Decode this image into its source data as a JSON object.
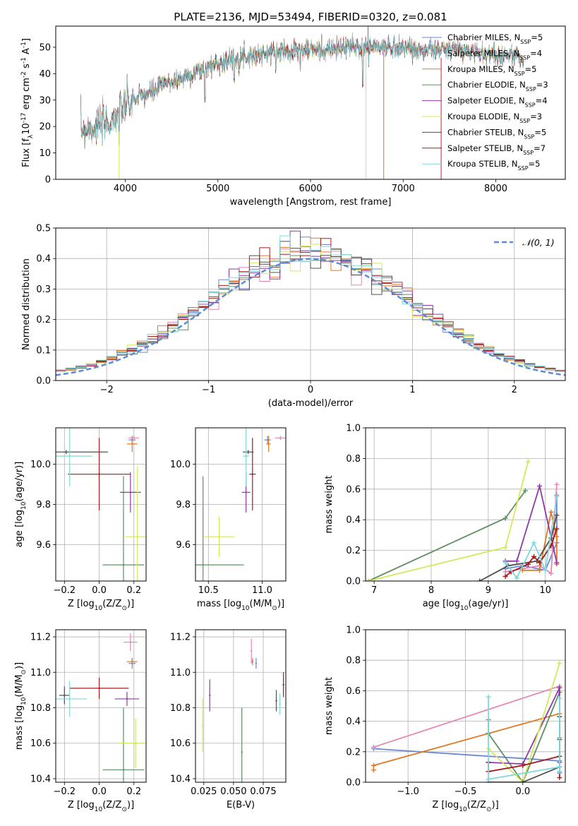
{
  "figure": {
    "title": "PLATE=2136, MJD=53494, FIBERID=0320, z=0.081",
    "models": [
      {
        "name": "Chabrier MILES, N$_{SSP}$=5",
        "label": "Chabrier MILES, N",
        "sub": "SSP",
        "n": "=5",
        "color": "#6a89d4"
      },
      {
        "name": "Salpeter MILES, N$_{SSP}$=4",
        "label": "Salpeter MILES, N",
        "sub": "SSP",
        "n": "=4",
        "color": "#e487b8"
      },
      {
        "name": "Kroupa MILES, N$_{SSP}$=5",
        "label": "Kroupa MILES, N",
        "sub": "SSP",
        "n": "=5",
        "color": "#e07a23"
      },
      {
        "name": "Chabrier ELODIE, N$_{SSP}$=3",
        "label": "Chabrier ELODIE, N",
        "sub": "SSP",
        "n": "=3",
        "color": "#5f8f62"
      },
      {
        "name": "Salpeter ELODIE, N$_{SSP}$=4",
        "label": "Salpeter ELODIE, N",
        "sub": "SSP",
        "n": "=4",
        "color": "#8e3aa8"
      },
      {
        "name": "Kroupa ELODIE, N$_{SSP}$=3",
        "label": "Kroupa ELODIE, N",
        "sub": "SSP",
        "n": "=3",
        "color": "#d6e85a"
      },
      {
        "name": "Chabrier STELIB, N$_{SSP}$=5",
        "label": "Chabrier STELIB, N",
        "sub": "SSP",
        "n": "=5",
        "color": "#4f4f4f"
      },
      {
        "name": "Salpeter STELIB, N$_{SSP}$=7",
        "label": "Salpeter STELIB, N",
        "sub": "SSP",
        "n": "=7",
        "color": "#a31b1b"
      },
      {
        "name": "Kroupa STELIB, N$_{SSP}$=5",
        "label": "Kroupa STELIB, N",
        "sub": "SSP",
        "n": "=5",
        "color": "#7fd8de"
      }
    ]
  },
  "chart_data": [
    {
      "id": "spectrum",
      "type": "line",
      "xlabel": "wavelength [Angstrom, rest frame]",
      "ylabel": "Flux [f$_\\lambda$10$^{-17}$ erg cm$^{-2}$ s$^{-1}$ A$^{-1}$]",
      "xlim": [
        3250,
        8750
      ],
      "ylim": [
        0,
        58
      ],
      "xticks": [
        4000,
        5000,
        6000,
        7000,
        8000
      ],
      "yticks": [
        0,
        10,
        20,
        30,
        40,
        50
      ],
      "legend": "upper right",
      "continuum": {
        "x": [
          3520,
          3700,
          3850,
          3950,
          4000,
          4100,
          4200,
          4300,
          4400,
          4600,
          4800,
          5000,
          5200,
          5400,
          5600,
          5800,
          6000,
          6200,
          6400,
          6600,
          6800,
          7000,
          7200,
          7400,
          7600,
          7800,
          8000,
          8200,
          8300
        ],
        "y": [
          19,
          20,
          22,
          26,
          28,
          30,
          32,
          33,
          36,
          38,
          41,
          44,
          46,
          47,
          48,
          49,
          49,
          49,
          50,
          50,
          50,
          50,
          49,
          49,
          49,
          48,
          47,
          47,
          45
        ]
      },
      "dips": [
        {
          "x": 3934,
          "y": 0
        },
        {
          "x": 4861,
          "y": 26
        },
        {
          "x": 5175,
          "y": 34
        },
        {
          "x": 5890,
          "y": 38
        },
        {
          "x": 6563,
          "y": 32
        }
      ],
      "spikes": [
        {
          "x": 6620,
          "y": 58
        }
      ],
      "cutoffs": [
        {
          "x": 7410,
          "y": 0
        }
      ]
    },
    {
      "id": "residual_hist",
      "type": "bar",
      "xlabel": "(data-model)/error",
      "ylabel": "Normed distribution",
      "xlim": [
        -2.5,
        2.5
      ],
      "ylim": [
        0,
        0.5
      ],
      "xticks": [
        -2,
        -1,
        0,
        1,
        2
      ],
      "yticks": [
        0.0,
        0.1,
        0.2,
        0.3,
        0.4,
        0.5
      ],
      "grid": true,
      "legend": "upper right",
      "reference": {
        "name": "$\\mathcal{N}(0,1)$",
        "label": "𝒩(0, 1)",
        "color": "#5b8ad6"
      },
      "bins": {
        "start": -2.5,
        "width": 0.1
      }
    },
    {
      "id": "age_vs_Z",
      "type": "scatter",
      "xlabel": "Z [log$_{10}$(Z/Z$_\\odot$)]",
      "ylabel": "age  [log$_{10}$(age/yr)]",
      "xlim": [
        -0.25,
        0.27
      ],
      "ylim": [
        9.42,
        10.18
      ],
      "xticks": [
        -0.2,
        0.0,
        0.2
      ],
      "yticks": [
        9.6,
        9.8,
        10.0
      ],
      "grid": true,
      "points": [
        {
          "model": 0,
          "x": 0.19,
          "y": 10.12,
          "xe": 0.02,
          "ye": 0.02
        },
        {
          "model": 1,
          "x": 0.2,
          "y": 10.13,
          "xe": 0.03,
          "ye": 0.01
        },
        {
          "model": 2,
          "x": 0.19,
          "y": 10.1,
          "xe": 0.03,
          "ye": 0.04
        },
        {
          "model": 3,
          "x": 0.14,
          "y": 9.5,
          "xe": 0.12,
          "ye": 0.44
        },
        {
          "model": 4,
          "x": 0.18,
          "y": 9.86,
          "xe": 0.06,
          "ye": 0.1
        },
        {
          "model": 5,
          "x": 0.22,
          "y": 9.64,
          "xe": 0.07,
          "ye": 0.35
        },
        {
          "model": 6,
          "x": -0.19,
          "y": 10.06,
          "xe": 0.24,
          "ye": 0.01
        },
        {
          "model": 7,
          "x": 0.0,
          "y": 9.95,
          "xe": 0.18,
          "ye": 0.18
        },
        {
          "model": 8,
          "x": -0.17,
          "y": 10.04,
          "xe": 0.13,
          "ye": 0.15
        }
      ]
    },
    {
      "id": "age_vs_mass",
      "type": "scatter",
      "xlabel": "mass [log$_{10}$(M/M$_\\odot$)]",
      "ylabel": "",
      "xlim": [
        10.38,
        11.22
      ],
      "ylim": [
        9.42,
        10.18
      ],
      "xticks": [
        10.5,
        11.0
      ],
      "yticks": [
        9.6,
        9.8,
        10.0
      ],
      "grid": true,
      "points": [
        {
          "model": 0,
          "x": 11.05,
          "y": 10.12,
          "xe": 0.03,
          "ye": 0.02
        },
        {
          "model": 1,
          "x": 11.17,
          "y": 10.13,
          "xe": 0.05,
          "ye": 0.01
        },
        {
          "model": 2,
          "x": 11.06,
          "y": 10.1,
          "xe": 0.02,
          "ye": 0.04
        },
        {
          "model": 3,
          "x": 10.45,
          "y": 9.5,
          "xe": 0.38,
          "ye": 0.44
        },
        {
          "model": 4,
          "x": 10.85,
          "y": 9.86,
          "xe": 0.04,
          "ye": 0.1
        },
        {
          "model": 5,
          "x": 10.6,
          "y": 9.64,
          "xe": 0.14,
          "ye": 0.1
        },
        {
          "model": 6,
          "x": 10.87,
          "y": 10.06,
          "xe": 0.05,
          "ye": 0.01
        },
        {
          "model": 7,
          "x": 10.91,
          "y": 9.95,
          "xe": 0.03,
          "ye": 0.18
        },
        {
          "model": 8,
          "x": 10.85,
          "y": 10.04,
          "xe": 0.03,
          "ye": 0.15
        }
      ]
    },
    {
      "id": "weight_vs_age",
      "type": "line",
      "xlabel": "age  [log$_{10}$(age/yr)]",
      "ylabel": "mass weight",
      "xlim": [
        6.85,
        10.35
      ],
      "ylim": [
        0,
        1.0
      ],
      "xticks": [
        7,
        8,
        9,
        10
      ],
      "yticks": [
        0.0,
        0.2,
        0.4,
        0.6,
        0.8,
        1.0
      ],
      "grid": true,
      "series": [
        {
          "model": 0,
          "x": [
            9.3,
            9.6,
            10.0,
            10.2,
            10.2
          ],
          "y": [
            0.08,
            0.1,
            0.07,
            0.25,
            0.56
          ]
        },
        {
          "model": 1,
          "x": [
            9.3,
            9.9,
            10.1,
            10.2
          ],
          "y": [
            0.06,
            0.1,
            0.05,
            0.63
          ]
        },
        {
          "model": 2,
          "x": [
            9.6,
            9.9,
            10.1,
            10.2,
            10.2
          ],
          "y": [
            0.07,
            0.07,
            0.45,
            0.29,
            0.11
          ]
        },
        {
          "model": 3,
          "x": [
            6.9,
            9.3,
            9.65
          ],
          "y": [
            0.0,
            0.41,
            0.59
          ]
        },
        {
          "model": 4,
          "x": [
            9.3,
            9.5,
            9.9,
            10.2
          ],
          "y": [
            0.13,
            0.13,
            0.62,
            0.12
          ]
        },
        {
          "model": 5,
          "x": [
            6.9,
            9.3,
            9.7
          ],
          "y": [
            0.0,
            0.22,
            0.78
          ]
        },
        {
          "model": 6,
          "x": [
            8.85,
            9.35,
            9.85,
            10.1,
            10.2
          ],
          "y": [
            0.0,
            0.1,
            0.13,
            0.28,
            0.43
          ]
        },
        {
          "model": 7,
          "x": [
            9.3,
            9.4,
            9.7,
            9.8,
            9.9,
            10.1,
            10.2
          ],
          "y": [
            0.03,
            0.06,
            0.11,
            0.16,
            0.12,
            0.23,
            0.34
          ]
        },
        {
          "model": 8,
          "x": [
            9.3,
            9.5,
            9.8,
            10.0,
            10.2
          ],
          "y": [
            0.12,
            0.02,
            0.25,
            0.07,
            0.55
          ]
        }
      ]
    },
    {
      "id": "mass_vs_Z",
      "type": "scatter",
      "xlabel": "Z [log$_{10}$(Z/Z$_\\odot$)]",
      "ylabel": "mass [log$_{10}$(M/M$_\\odot$)]",
      "xlim": [
        -0.25,
        0.27
      ],
      "ylim": [
        10.38,
        11.24
      ],
      "xticks": [
        -0.2,
        0.0,
        0.2
      ],
      "yticks": [
        10.4,
        10.6,
        10.8,
        11.0,
        11.2
      ],
      "grid": true,
      "points": [
        {
          "model": 0,
          "x": 0.19,
          "y": 11.05,
          "xe": 0.02,
          "ye": 0.03
        },
        {
          "model": 1,
          "x": 0.18,
          "y": 11.17,
          "xe": 0.04,
          "ye": 0.05
        },
        {
          "model": 2,
          "x": 0.19,
          "y": 11.06,
          "xe": 0.03,
          "ye": 0.02
        },
        {
          "model": 3,
          "x": 0.14,
          "y": 10.45,
          "xe": 0.12,
          "ye": 0.35
        },
        {
          "model": 4,
          "x": 0.16,
          "y": 10.85,
          "xe": 0.07,
          "ye": 0.04
        },
        {
          "model": 5,
          "x": 0.21,
          "y": 10.6,
          "xe": 0.1,
          "ye": 0.14
        },
        {
          "model": 6,
          "x": -0.2,
          "y": 10.87,
          "xe": 0.03,
          "ye": 0.05
        },
        {
          "model": 7,
          "x": 0.0,
          "y": 10.91,
          "xe": 0.17,
          "ye": 0.06
        },
        {
          "model": 8,
          "x": -0.17,
          "y": 10.85,
          "xe": 0.1,
          "ye": 0.1
        }
      ]
    },
    {
      "id": "mass_vs_EBV",
      "type": "scatter",
      "xlabel": "E(B-V)",
      "ylabel": "",
      "xlim": [
        0.018,
        0.094
      ],
      "ylim": [
        10.38,
        11.24
      ],
      "xticks": [
        0.025,
        0.05,
        0.075
      ],
      "yticks": [
        10.4,
        10.6,
        10.8,
        11.0,
        11.2
      ],
      "grid": true,
      "points": [
        {
          "model": 0,
          "x": 0.069,
          "y": 11.05,
          "xe": 0,
          "ye": 0.03
        },
        {
          "model": 1,
          "x": 0.065,
          "y": 11.12,
          "xe": 0,
          "ye": 0.07
        },
        {
          "model": 2,
          "x": 0.066,
          "y": 11.06,
          "xe": 0,
          "ye": 0.02
        },
        {
          "model": 3,
          "x": 0.057,
          "y": 10.55,
          "xe": 0,
          "ye": 0.25
        },
        {
          "model": 4,
          "x": 0.03,
          "y": 10.87,
          "xe": 0,
          "ye": 0.09
        },
        {
          "model": 5,
          "x": 0.024,
          "y": 10.7,
          "xe": 0,
          "ye": 0.15
        },
        {
          "model": 6,
          "x": 0.086,
          "y": 10.84,
          "xe": 0,
          "ye": 0.06
        },
        {
          "model": 7,
          "x": 0.092,
          "y": 10.93,
          "xe": 0,
          "ye": 0.07
        },
        {
          "model": 8,
          "x": 0.089,
          "y": 10.82,
          "xe": 0,
          "ye": 0.06
        }
      ]
    },
    {
      "id": "weight_vs_Z",
      "type": "line",
      "xlabel": "Z [log$_{10}$(Z/Z$_\\odot$)]",
      "ylabel": "mass weight",
      "xlim": [
        -1.37,
        0.37
      ],
      "ylim": [
        0,
        1.0
      ],
      "xticks": [
        -1.0,
        -0.5,
        0.0
      ],
      "yticks": [
        0.0,
        0.2,
        0.4,
        0.6,
        0.8,
        1.0
      ],
      "grid": true,
      "series": [
        {
          "model": 0,
          "x": [
            -1.3,
            0.32,
            0.32,
            0.32
          ],
          "y": [
            0.22,
            0.14,
            0.07,
            0.06
          ]
        },
        {
          "model": 1,
          "x": [
            -1.3,
            0.32,
            0.32
          ],
          "y": [
            0.23,
            0.63,
            0.1
          ]
        },
        {
          "model": 2,
          "x": [
            -1.3,
            -1.3,
            0.32,
            0.32
          ],
          "y": [
            0.08,
            0.11,
            0.45,
            0.29
          ]
        },
        {
          "model": 3,
          "x": [
            -0.3,
            -0.3,
            0.0,
            0.32
          ],
          "y": [
            0.41,
            0.32,
            0.0,
            0.59
          ]
        },
        {
          "model": 4,
          "x": [
            -0.3,
            0.0,
            0.32,
            0.32
          ],
          "y": [
            0.13,
            0.12,
            0.62,
            0.13
          ]
        },
        {
          "model": 5,
          "x": [
            -0.3,
            0.0,
            0.32
          ],
          "y": [
            0.22,
            0.0,
            0.78
          ]
        },
        {
          "model": 6,
          "x": [
            -0.3,
            0.0,
            0.32,
            0.32,
            0.32
          ],
          "y": [
            0.0,
            0.0,
            0.1,
            0.43,
            0.28
          ]
        },
        {
          "model": 7,
          "x": [
            -0.3,
            -0.3,
            0.0,
            0.32,
            0.32
          ],
          "y": [
            0.13,
            0.07,
            0.11,
            0.17,
            0.03
          ]
        },
        {
          "model": 8,
          "x": [
            -0.3,
            -0.3,
            0.32,
            0.32,
            0.32
          ],
          "y": [
            0.56,
            0.02,
            0.1,
            0.55,
            0.07
          ]
        }
      ]
    }
  ]
}
